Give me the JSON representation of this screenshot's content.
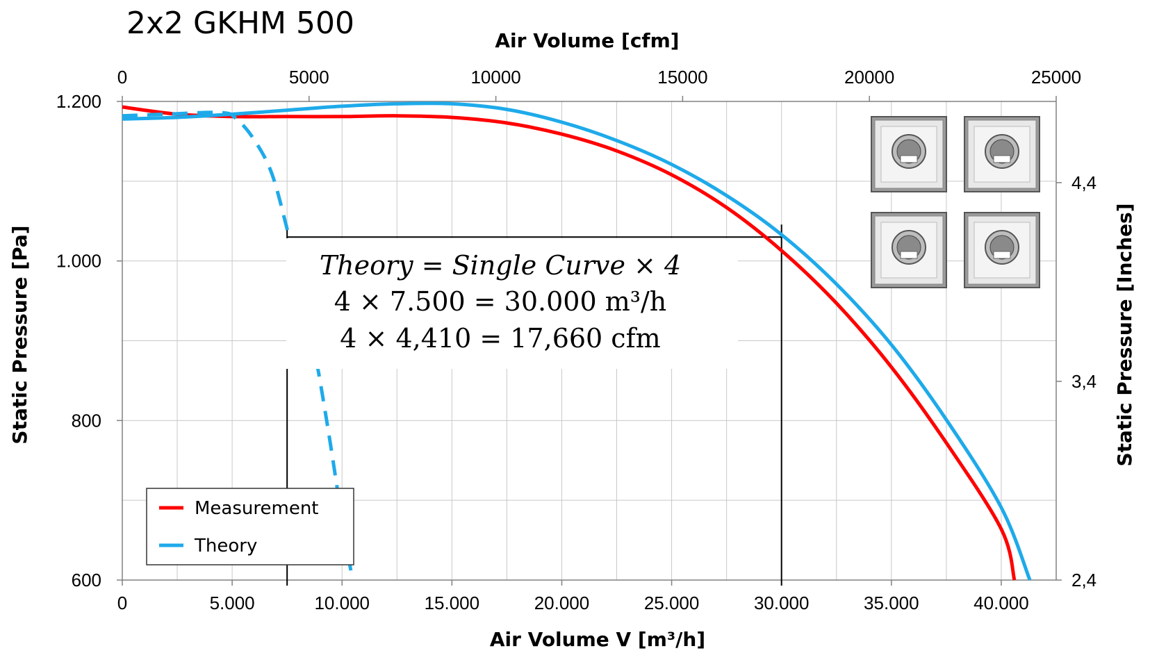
{
  "chart_data": {
    "type": "line",
    "title": "2x2 GKHM 500",
    "xlabel": "Air Volume V [m³/h]",
    "ylabel": "Static Pressure [Pa]",
    "x2label": "Air Volume [cfm]",
    "y2label": "Static Pressure [Inches]",
    "xlim": [
      0,
      42500
    ],
    "ylim": [
      600,
      1200
    ],
    "x2lim": [
      0,
      25000
    ],
    "x_ticks": [
      "0",
      "5.000",
      "10.000",
      "15.000",
      "20.000",
      "25.000",
      "30.000",
      "35.000",
      "40.000"
    ],
    "x_tick_values": [
      0,
      5000,
      10000,
      15000,
      20000,
      25000,
      30000,
      35000,
      40000
    ],
    "y_ticks": [
      "600",
      "800",
      "1.000",
      "1.200"
    ],
    "y_tick_values": [
      600,
      800,
      1000,
      1200
    ],
    "x2_ticks": [
      "0",
      "5000",
      "10000",
      "15000",
      "20000",
      "25000"
    ],
    "x2_tick_values": [
      0,
      5000,
      10000,
      15000,
      20000,
      25000
    ],
    "y2_ticks": [
      "2,4",
      "3,4",
      "4,4"
    ],
    "y2_tick_values": [
      2.4,
      3.4,
      4.4
    ],
    "grid": true,
    "legend_position": "bottom-left",
    "series": [
      {
        "name": "Measurement",
        "color": "#ff0000",
        "style": "solid",
        "x": [
          0,
          2500,
          5000,
          7500,
          10000,
          12500,
          15000,
          17500,
          20000,
          22500,
          25000,
          27500,
          30000,
          32500,
          35000,
          37500,
          40000,
          40600
        ],
        "y": [
          1193,
          1184,
          1181,
          1181,
          1181,
          1182,
          1180,
          1173,
          1159,
          1138,
          1108,
          1067,
          1013,
          947,
          867,
          772,
          664,
          600
        ]
      },
      {
        "name": "Theory",
        "color": "#1eaaea",
        "style": "solid",
        "x": [
          0,
          2500,
          5000,
          7500,
          10000,
          12500,
          15000,
          17500,
          20000,
          22500,
          25000,
          27500,
          30000,
          32500,
          35000,
          37500,
          40000,
          41300
        ],
        "y": [
          1178,
          1180,
          1184,
          1189,
          1194,
          1197,
          1197,
          1190,
          1174,
          1151,
          1121,
          1082,
          1033,
          971,
          895,
          801,
          691,
          600
        ]
      },
      {
        "name": "",
        "color": "#1eaaea",
        "style": "dashed",
        "x": [
          0,
          2000,
          4500,
          5200,
          6000,
          6800,
          7500,
          8200,
          8800,
          9300,
          9700,
          10000,
          10400
        ],
        "y": [
          1182,
          1184,
          1186,
          1178,
          1152,
          1110,
          1040,
          960,
          880,
          800,
          730,
          675,
          612
        ]
      }
    ],
    "annotation": {
      "line1": "Theory = Single Curve  × 4",
      "line2": "4 × 7.500 = 30.000 m³/h",
      "line3": "4 × 4,410 = 17,660 cfm",
      "marker_x": [
        7500,
        30000
      ],
      "marker_y": 1030
    }
  },
  "thumbnail_icons": [
    "fan-unit-icon",
    "fan-unit-icon",
    "fan-unit-icon",
    "fan-unit-icon"
  ]
}
